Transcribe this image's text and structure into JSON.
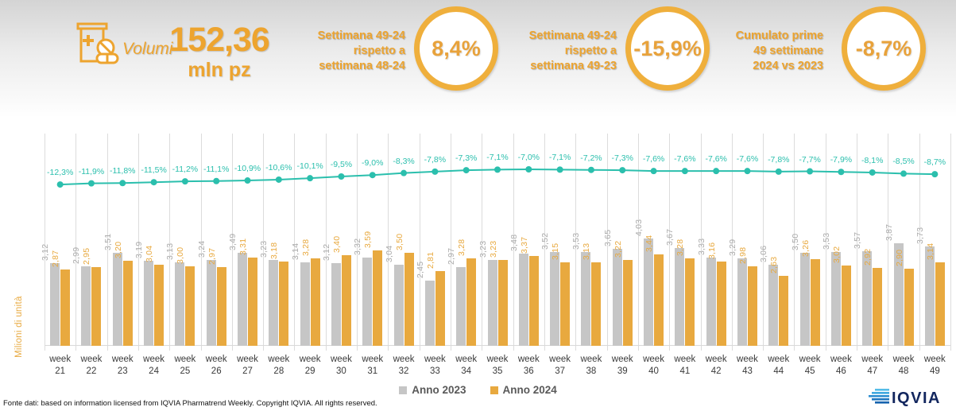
{
  "header": {
    "volumi_label": "Volumi",
    "value": "152,36",
    "unit": "mln pz",
    "kpis": [
      {
        "label": "Settimana 49-24\nrispetto a\nsettimana 48-24",
        "value": "8,4%"
      },
      {
        "label": "Settimana 49-24\nrispetto a\nsettimana 49-23",
        "value": "-15,9%"
      },
      {
        "label": "Cumulato prime\n49 settimane\n2024 vs 2023",
        "value": "-8,7%"
      }
    ]
  },
  "chart_data": {
    "type": "bar",
    "subtype": "grouped-bars-with-cumulative-line",
    "title": "",
    "ylabel": "Milioni di unità",
    "xlabel": "",
    "legend_position": "bottom",
    "grid": "vertical-only",
    "categories": [
      "week 21",
      "week 22",
      "week 23",
      "week 24",
      "week 25",
      "week 26",
      "week 27",
      "week 28",
      "week 29",
      "week 30",
      "week 31",
      "week 32",
      "week 33",
      "week 34",
      "week 35",
      "week 36",
      "week 37",
      "week 38",
      "week 39",
      "week 40",
      "week 41",
      "week 42",
      "week 43",
      "week 44",
      "week 45",
      "week 46",
      "week 47",
      "week 48",
      "week 49"
    ],
    "series": [
      {
        "name": "Anno 2023",
        "color": "#c6c6c6",
        "values": [
          3.12,
          2.99,
          3.51,
          3.19,
          3.13,
          3.24,
          3.49,
          3.23,
          3.14,
          3.12,
          3.32,
          3.04,
          2.45,
          2.97,
          3.23,
          3.48,
          3.52,
          3.53,
          3.65,
          4.03,
          3.67,
          3.33,
          3.29,
          3.06,
          3.5,
          3.53,
          3.57,
          3.87,
          3.73
        ]
      },
      {
        "name": "Anno 2024",
        "color": "#e8a93f",
        "values": [
          2.87,
          2.95,
          3.2,
          3.04,
          3.0,
          2.97,
          3.31,
          3.18,
          3.28,
          3.4,
          3.59,
          3.5,
          2.81,
          3.28,
          3.23,
          3.37,
          3.15,
          3.13,
          3.22,
          3.44,
          3.28,
          3.16,
          2.98,
          2.63,
          3.26,
          3.02,
          2.92,
          2.9,
          3.14
        ]
      }
    ],
    "line": {
      "color": "#2bbfad",
      "values_pct": [
        -12.3,
        -11.9,
        -11.8,
        -11.5,
        -11.2,
        -11.1,
        -10.9,
        -10.6,
        -10.1,
        -9.5,
        -9.0,
        -8.3,
        -7.8,
        -7.3,
        -7.1,
        -7.0,
        -7.1,
        -7.2,
        -7.3,
        -7.6,
        -7.6,
        -7.6,
        -7.6,
        -7.8,
        -7.7,
        -7.9,
        -8.1,
        -8.5,
        -8.7
      ]
    }
  },
  "footer": {
    "source": "Fonte dati: based on information licensed from IQVIA Pharmatrend Weekly. Copyright IQVIA. All rights reserved.",
    "logo_text": "IQVIA"
  },
  "colors": {
    "accent_orange": "#eda42f",
    "bar_gray": "#c6c6c6",
    "bar_orange": "#e8a93f",
    "line_teal": "#2bbfad",
    "logo_navy": "#12265e",
    "logo_blue": "#2fa9e0"
  }
}
